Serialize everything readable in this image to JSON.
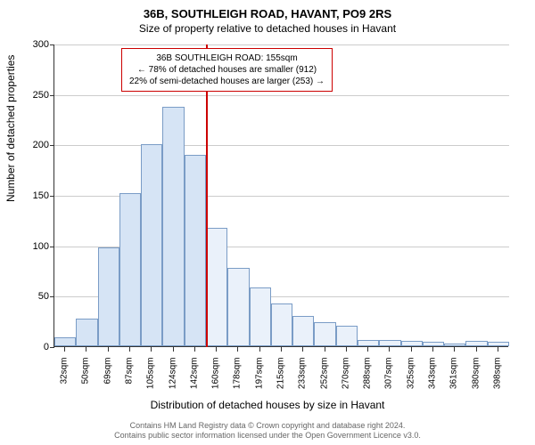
{
  "title": "36B, SOUTHLEIGH ROAD, HAVANT, PO9 2RS",
  "subtitle": "Size of property relative to detached houses in Havant",
  "chart": {
    "type": "histogram",
    "y_label": "Number of detached properties",
    "x_label": "Distribution of detached houses by size in Havant",
    "ylim": [
      0,
      300
    ],
    "ytick_step": 50,
    "yticks": [
      0,
      50,
      100,
      150,
      200,
      250,
      300
    ],
    "background_color": "#ffffff",
    "grid_color": "#cccccc",
    "bar_fill": "#d6e4f5",
    "bar_border": "#7a9cc6",
    "bar_fill_after": "#eaf1fa",
    "reference_line_color": "#cc0000",
    "reference_x_index": 7,
    "bins": [
      {
        "label": "32sqm",
        "value": 9
      },
      {
        "label": "50sqm",
        "value": 27
      },
      {
        "label": "69sqm",
        "value": 98
      },
      {
        "label": "87sqm",
        "value": 152
      },
      {
        "label": "105sqm",
        "value": 200
      },
      {
        "label": "124sqm",
        "value": 237
      },
      {
        "label": "142sqm",
        "value": 190
      },
      {
        "label": "160sqm",
        "value": 117
      },
      {
        "label": "178sqm",
        "value": 78
      },
      {
        "label": "197sqm",
        "value": 58
      },
      {
        "label": "215sqm",
        "value": 42
      },
      {
        "label": "233sqm",
        "value": 30
      },
      {
        "label": "252sqm",
        "value": 24
      },
      {
        "label": "270sqm",
        "value": 20
      },
      {
        "label": "288sqm",
        "value": 6
      },
      {
        "label": "307sqm",
        "value": 6
      },
      {
        "label": "325sqm",
        "value": 5
      },
      {
        "label": "343sqm",
        "value": 4
      },
      {
        "label": "361sqm",
        "value": 3
      },
      {
        "label": "380sqm",
        "value": 5
      },
      {
        "label": "398sqm",
        "value": 4
      }
    ]
  },
  "annotation": {
    "line1": "36B SOUTHLEIGH ROAD: 155sqm",
    "line2": "← 78% of detached houses are smaller (912)",
    "line3": "22% of semi-detached houses are larger (253) →",
    "border_color": "#cc0000"
  },
  "footer": {
    "line1": "Contains HM Land Registry data © Crown copyright and database right 2024.",
    "line2": "Contains public sector information licensed under the Open Government Licence v3.0."
  }
}
